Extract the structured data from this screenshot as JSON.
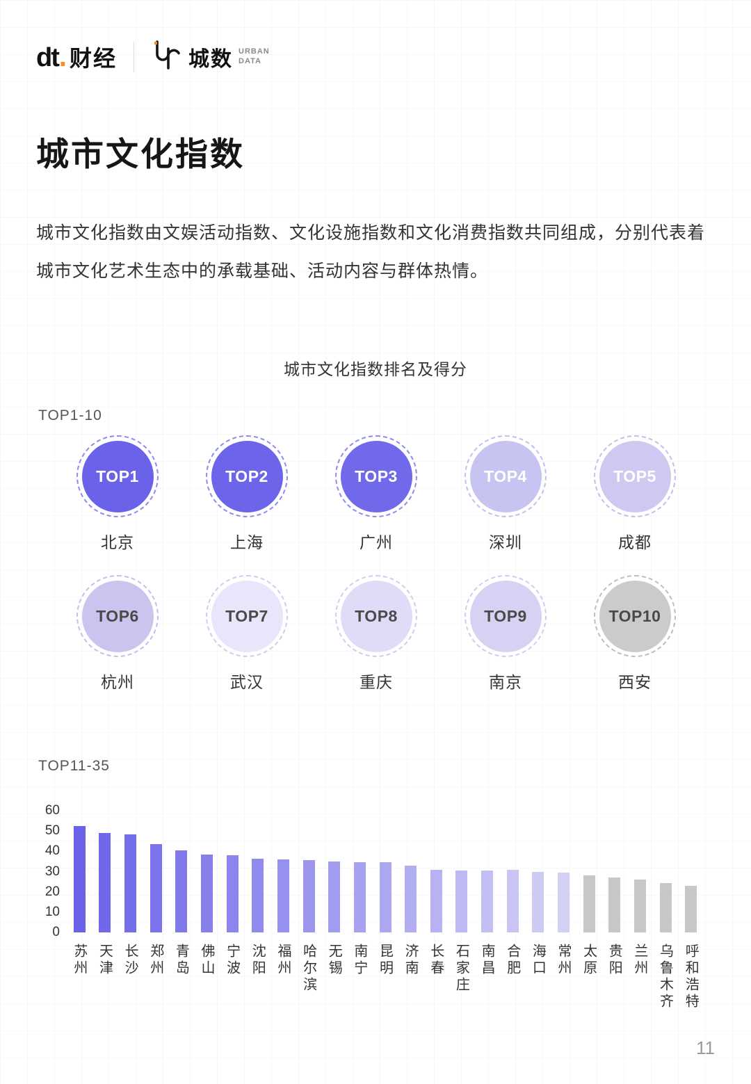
{
  "header": {
    "logo_dt_en": "dt",
    "logo_dt_dot": ".",
    "logo_dt_cn": "财经",
    "logo_urban_cn": "城数",
    "logo_urban_en_line1": "URBAN",
    "logo_urban_en_line2": "DATA"
  },
  "title": "城市文化指数",
  "description": "城市文化指数由文娱活动指数、文化设施指数和文化消费指数共同组成，分别代表着城市文化艺术生态中的承载基础、活动内容与群体热情。",
  "chart_title": "城市文化指数排名及得分",
  "accent_color": "#6A62E9",
  "top10": {
    "label": "TOP1-10",
    "items": [
      {
        "rank": "TOP1",
        "city": "北京",
        "fill": "#6A62E9",
        "text": "#FFFFFF",
        "ring": "#9089EE"
      },
      {
        "rank": "TOP2",
        "city": "上海",
        "fill": "#6C64E9",
        "text": "#FFFFFF",
        "ring": "#9089EE"
      },
      {
        "rank": "TOP3",
        "city": "广州",
        "fill": "#7069EA",
        "text": "#FFFFFF",
        "ring": "#9089EE"
      },
      {
        "rank": "TOP4",
        "city": "深圳",
        "fill": "#C8C4F1",
        "text": "#FFFFFF",
        "ring": "#C3BFEC"
      },
      {
        "rank": "TOP5",
        "city": "成都",
        "fill": "#CDC9F1",
        "text": "#FFFFFF",
        "ring": "#C3BFEC"
      },
      {
        "rank": "TOP6",
        "city": "杭州",
        "fill": "#C9C5EF",
        "text": "#4A4A4A",
        "ring": "#C3BFEC"
      },
      {
        "rank": "TOP7",
        "city": "武汉",
        "fill": "#E8E6FA",
        "text": "#4A4A4A",
        "ring": "#CFCCEF"
      },
      {
        "rank": "TOP8",
        "city": "重庆",
        "fill": "#DFDCF7",
        "text": "#4A4A4A",
        "ring": "#CFCCEF"
      },
      {
        "rank": "TOP9",
        "city": "南京",
        "fill": "#D6D2F4",
        "text": "#4A4A4A",
        "ring": "#CFCCEF"
      },
      {
        "rank": "TOP10",
        "city": "西安",
        "fill": "#CBCBCB",
        "text": "#4A4A4A",
        "ring": "#BEBEBE"
      }
    ]
  },
  "chart_data": {
    "type": "bar",
    "section_label": "TOP11-35",
    "title": "城市文化指数排名及得分",
    "xlabel": "",
    "ylabel": "",
    "ylim": [
      0,
      60
    ],
    "yticks": [
      60,
      50,
      40,
      30,
      20,
      10,
      0
    ],
    "grid": false,
    "legend": false,
    "categories": [
      "苏州",
      "天津",
      "长沙",
      "郑州",
      "青岛",
      "佛山",
      "宁波",
      "沈阳",
      "福州",
      "哈尔滨",
      "无锡",
      "南宁",
      "昆明",
      "济南",
      "长春",
      "石家庄",
      "南昌",
      "合肥",
      "海口",
      "常州",
      "太原",
      "贵阳",
      "兰州",
      "乌鲁木齐",
      "呼和浩特"
    ],
    "values": [
      52.5,
      49,
      48.5,
      43.5,
      40.5,
      38.5,
      38,
      36.5,
      36,
      35.5,
      35,
      34.5,
      34.5,
      33,
      31,
      30.5,
      30.5,
      31,
      30,
      29.5,
      28,
      27,
      26,
      24.5,
      23
    ],
    "bar_color_start": "#6A62E9",
    "bar_color_end": "#D3D0F5",
    "bar_color_gray": "#C7C7C7",
    "gray_from_index": 20
  },
  "page": {
    "number": "11"
  }
}
